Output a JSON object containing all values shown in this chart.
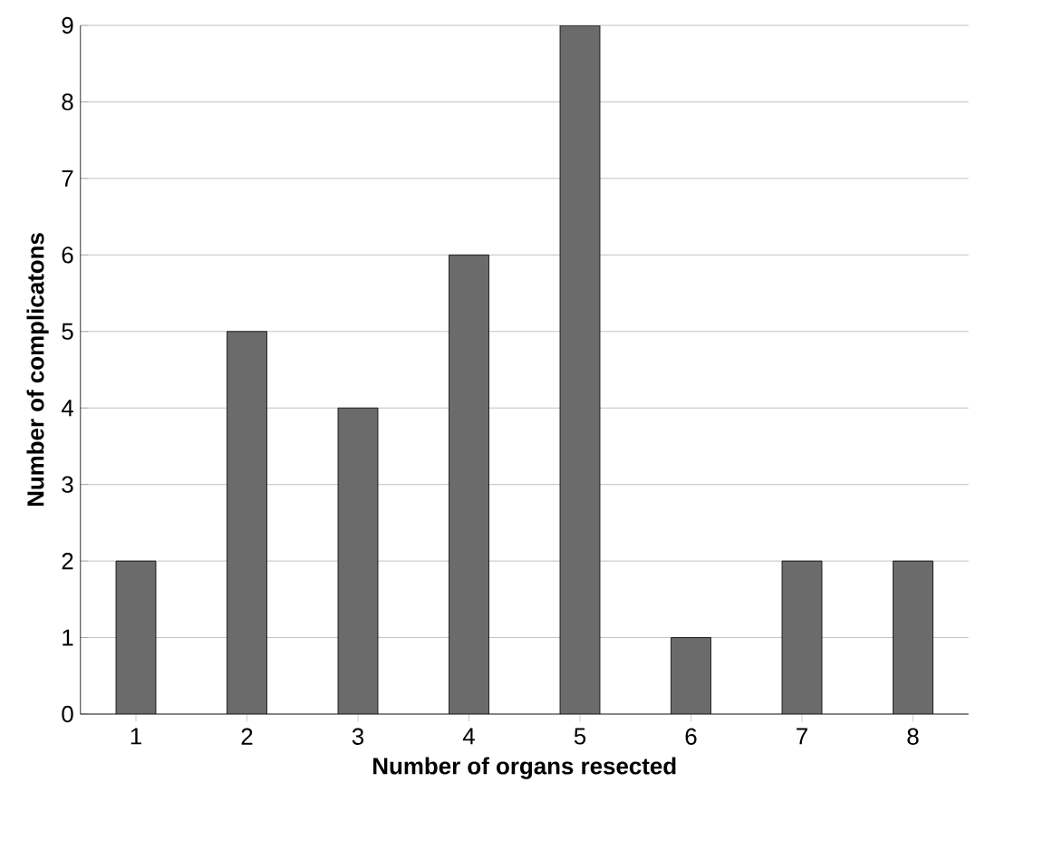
{
  "chart_data": {
    "type": "bar",
    "xlabel": "Number of organs resected",
    "ylabel": "Number of complicatons",
    "categories": [
      "1",
      "2",
      "3",
      "4",
      "5",
      "6",
      "7",
      "8"
    ],
    "values": [
      2,
      5,
      4,
      6,
      9,
      1,
      2,
      2
    ],
    "color": "#6b6b6b",
    "ylim": [
      0,
      9
    ],
    "yticks": [
      0,
      1,
      2,
      3,
      4,
      5,
      6,
      7,
      8,
      9
    ],
    "grid": "y"
  }
}
